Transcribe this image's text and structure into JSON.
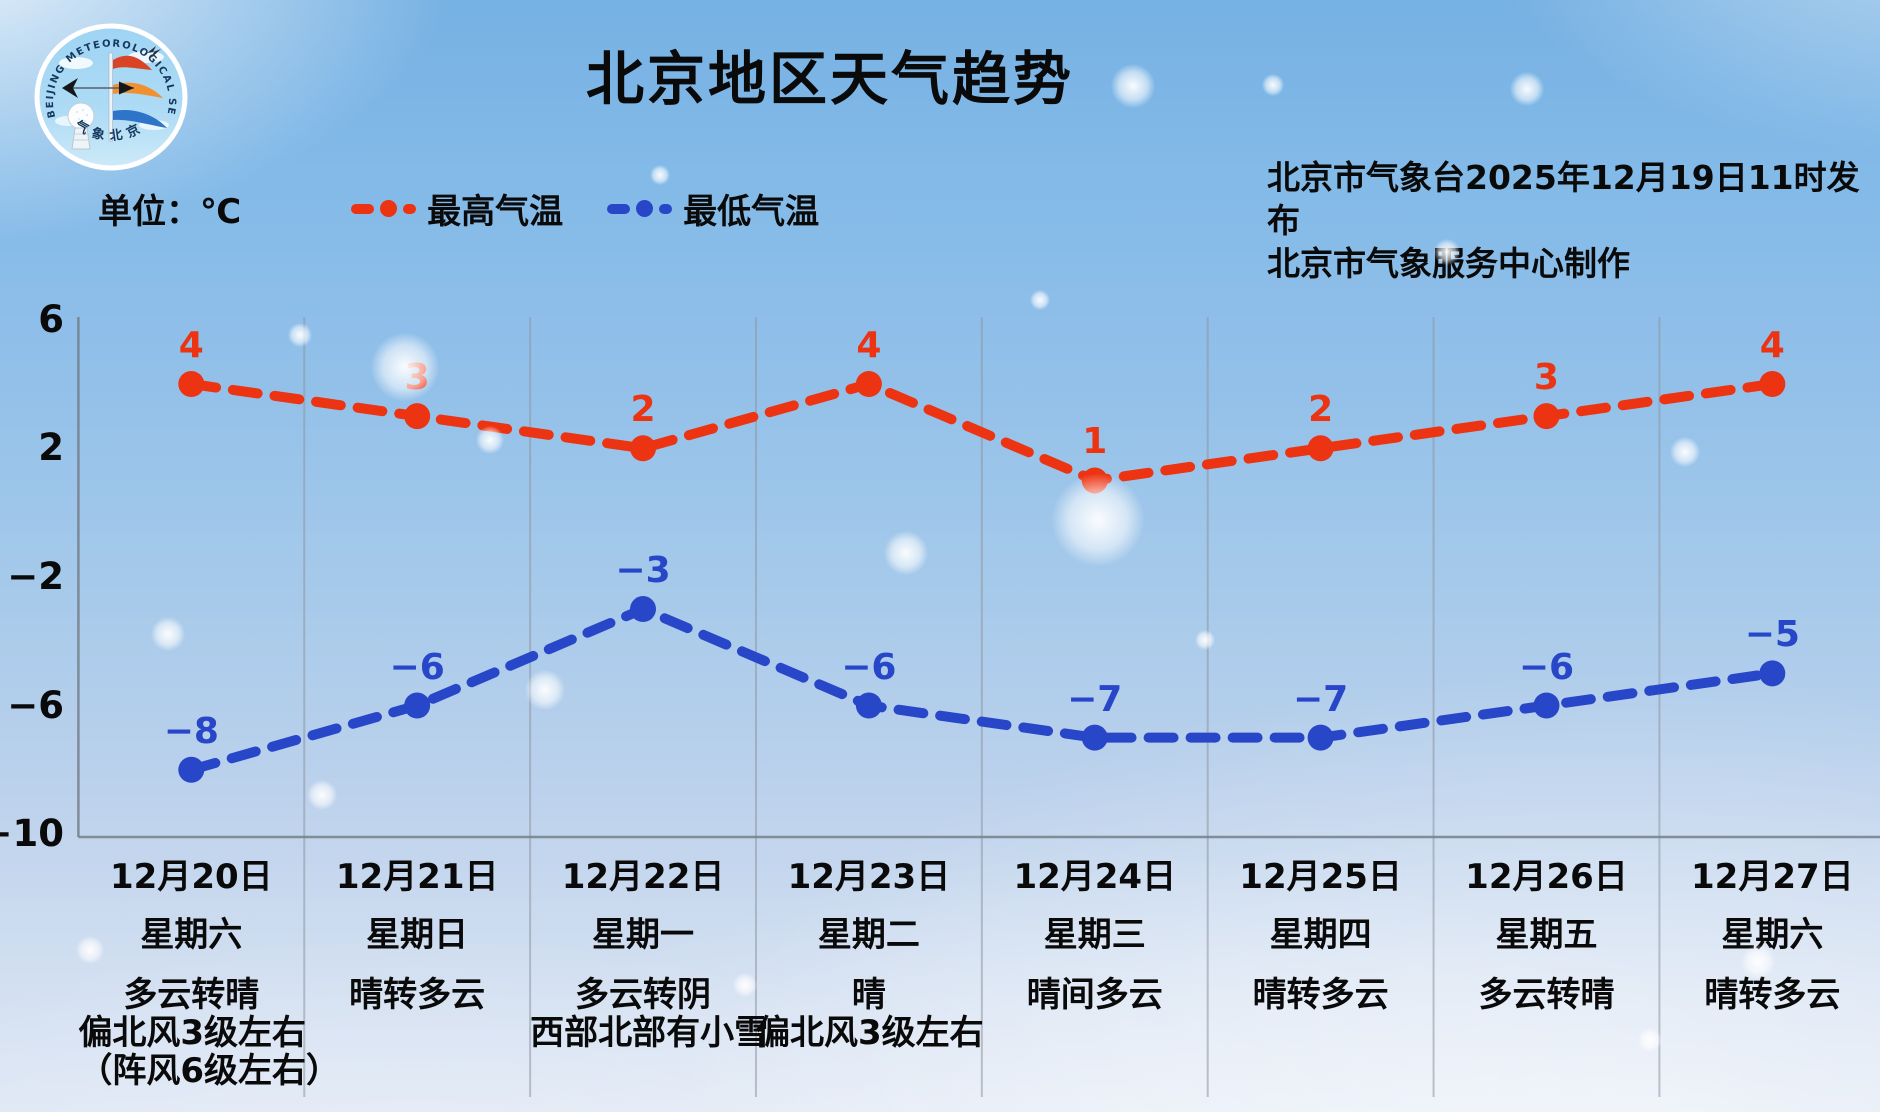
{
  "title": "北京地区天气趋势",
  "logo": {
    "ring_text": "BEIJING METEOROLOGICAL SERVICE",
    "bottom_text": "气象北京"
  },
  "legend": {
    "unit_label": "单位：℃",
    "max_label": "最高气温",
    "min_label": "最低气温"
  },
  "source": {
    "line1": "北京市气象台2025年12月19日11时发布",
    "line2": "北京市气象服务中心制作"
  },
  "colors": {
    "max_temp": "#ec3312",
    "min_temp": "#2847c8",
    "text": "#0a0a0a",
    "grid": "rgba(142,150,160,0.55)",
    "axis": "rgba(118,127,138,0.85)"
  },
  "chart_data": {
    "type": "line",
    "title": "北京地区天气趋势",
    "unit": "℃",
    "grid": "vertical-column-separators-only",
    "legend_position": "top-left",
    "y_axis": {
      "ticks": [
        6,
        2,
        -2,
        -6,
        -10
      ],
      "min": -10,
      "max": 6
    },
    "categories": [
      {
        "date": "12月20日",
        "week": "星期六",
        "weather": [
          "多云转晴",
          "偏北风3级左右",
          "（阵风6级左右）"
        ]
      },
      {
        "date": "12月21日",
        "week": "星期日",
        "weather": [
          "晴转多云"
        ]
      },
      {
        "date": "12月22日",
        "week": "星期一",
        "weather": [
          "多云转阴",
          "西部北部有小雪"
        ]
      },
      {
        "date": "12月23日",
        "week": "星期二",
        "weather": [
          "晴",
          "偏北风3级左右"
        ]
      },
      {
        "date": "12月24日",
        "week": "星期三",
        "weather": [
          "晴间多云"
        ]
      },
      {
        "date": "12月25日",
        "week": "星期四",
        "weather": [
          "晴转多云"
        ]
      },
      {
        "date": "12月26日",
        "week": "星期五",
        "weather": [
          "多云转晴"
        ]
      },
      {
        "date": "12月27日",
        "week": "星期六",
        "weather": [
          "晴转多云"
        ]
      }
    ],
    "series": [
      {
        "name": "最高气温",
        "color": "#ec3312",
        "values": [
          4,
          3,
          2,
          4,
          1,
          2,
          3,
          4
        ]
      },
      {
        "name": "最低气温",
        "color": "#2847c8",
        "values": [
          -8,
          -6,
          -3,
          -6,
          -7,
          -7,
          -6,
          -5
        ]
      }
    ]
  }
}
